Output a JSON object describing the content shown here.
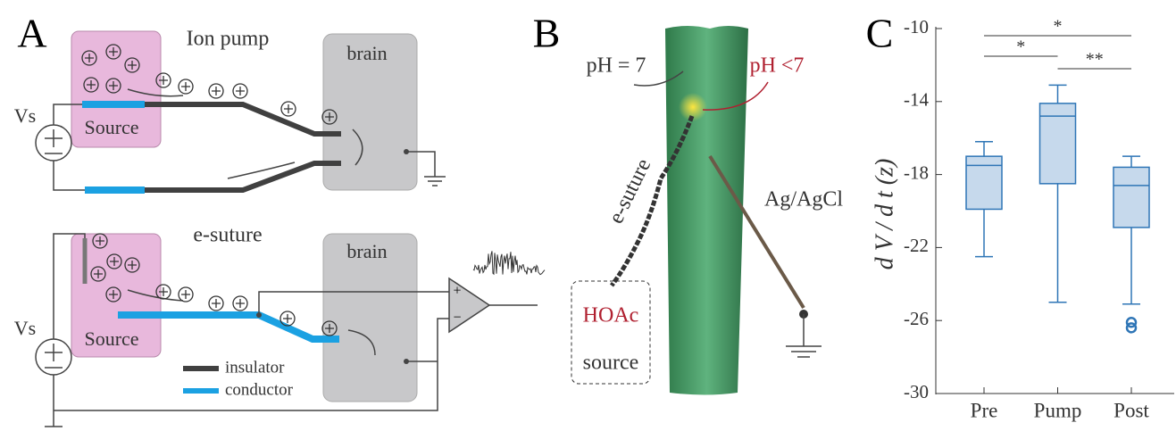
{
  "panel_a": {
    "label": "A",
    "ion_pump": {
      "title": "Ion pump",
      "brain": "brain",
      "source": "Source",
      "vs": "Vs"
    },
    "e_suture": {
      "title": "e-suture",
      "brain": "brain",
      "source": "Source",
      "vs": "Vs",
      "amp_plus": "+",
      "amp_minus": "−"
    },
    "legend": {
      "insulator": "insulator",
      "conductor": "conductor"
    }
  },
  "panel_b": {
    "label": "B",
    "ph_neutral": "pH = 7",
    "ph_acid": "pH <7",
    "suture": "e-suture",
    "electrode": "Ag/AgCl",
    "hoac": "HOAc",
    "source": "source"
  },
  "chart_data": {
    "type": "box",
    "panel_label": "C",
    "y_label": "d V / d t (z)",
    "categories": [
      "Pre",
      "Pump",
      "Post"
    ],
    "color": "#2e75b6",
    "fill": "#c6d9ec",
    "boxes": [
      {
        "whisker_high": -16.2,
        "q3": -17.0,
        "median": -17.5,
        "q1": -19.9,
        "whisker_low": -22.5,
        "outliers": []
      },
      {
        "whisker_high": -13.1,
        "q3": -14.1,
        "median": -14.8,
        "q1": -18.5,
        "whisker_low": -25.0,
        "outliers": []
      },
      {
        "whisker_high": -17.0,
        "q3": -17.6,
        "median": -18.6,
        "q1": -20.9,
        "whisker_low": -25.1,
        "outliers": [
          -26.1,
          -26.4
        ]
      }
    ],
    "ylim": [
      -30,
      -10
    ],
    "yticks": [
      -30,
      -26,
      -22,
      -18,
      -14,
      -10
    ],
    "significance": [
      {
        "between": [
          "Pre",
          "Post"
        ],
        "label": "*"
      },
      {
        "between": [
          "Pre",
          "Pump"
        ],
        "label": "*"
      },
      {
        "between": [
          "Pump",
          "Post"
        ],
        "label": "**"
      }
    ]
  }
}
